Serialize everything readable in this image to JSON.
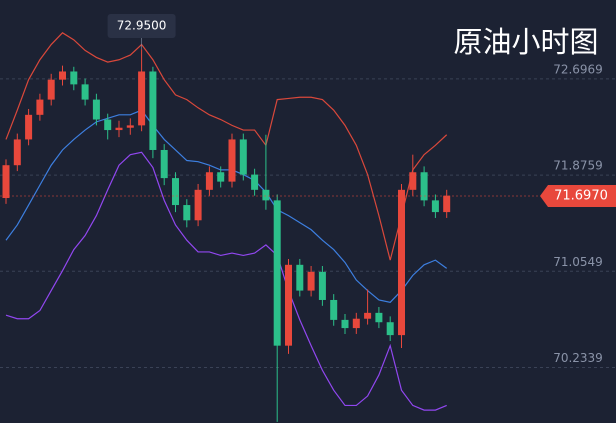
{
  "chart_data": {
    "type": "candlestick",
    "title": "原油小时图",
    "ylim": [
      69.76,
      73.37
    ],
    "yticks": [
      70.2339,
      71.0549,
      71.8759,
      72.6969
    ],
    "grid": true,
    "up_color": "#e8483c",
    "down_color": "#2cc08a",
    "candles": {
      "open": [
        71.68,
        71.96,
        72.18,
        72.39,
        72.52,
        72.69,
        72.76,
        72.65,
        72.52,
        72.35,
        72.26,
        72.28,
        72.3,
        72.76,
        72.09,
        71.85,
        71.62,
        71.49,
        71.75,
        71.9,
        71.82,
        72.18,
        71.88,
        71.75,
        71.66,
        70.42,
        71.11,
        70.89,
        71.05,
        70.81,
        70.64,
        70.57,
        70.65,
        70.7,
        70.62,
        70.51,
        71.75,
        71.9,
        71.66,
        71.56
      ],
      "high": [
        72.01,
        72.23,
        72.44,
        72.57,
        72.74,
        72.81,
        72.8,
        72.7,
        72.57,
        72.4,
        72.34,
        72.36,
        72.95,
        72.8,
        72.14,
        71.9,
        71.67,
        71.8,
        71.95,
        71.95,
        72.23,
        72.23,
        71.93,
        72.22,
        71.71,
        71.16,
        71.16,
        71.1,
        71.1,
        70.86,
        70.69,
        70.7,
        70.9,
        70.75,
        70.67,
        71.8,
        72.05,
        71.95,
        71.71,
        71.75
      ],
      "low": [
        71.63,
        71.91,
        72.13,
        72.34,
        72.47,
        72.64,
        72.6,
        72.47,
        72.3,
        72.18,
        72.2,
        72.22,
        72.25,
        72.02,
        71.79,
        71.56,
        71.43,
        71.44,
        71.7,
        71.77,
        71.77,
        71.83,
        71.7,
        71.58,
        69.77,
        70.35,
        70.84,
        70.84,
        70.76,
        70.59,
        70.52,
        70.52,
        70.6,
        70.57,
        70.46,
        70.4,
        71.7,
        71.61,
        71.51,
        71.51
      ],
      "close": [
        71.96,
        72.18,
        72.39,
        72.52,
        72.69,
        72.76,
        72.65,
        72.52,
        72.35,
        72.26,
        72.28,
        72.3,
        72.76,
        72.09,
        71.85,
        71.62,
        71.49,
        71.75,
        71.9,
        71.82,
        72.18,
        71.88,
        71.75,
        71.66,
        70.42,
        71.11,
        70.89,
        71.05,
        70.81,
        70.64,
        70.57,
        70.65,
        70.7,
        70.62,
        70.51,
        71.75,
        71.9,
        71.66,
        71.56,
        71.7
      ]
    },
    "bands": [
      {
        "color": "#d9483b",
        "values": [
          72.18,
          72.43,
          72.69,
          72.86,
          72.99,
          73.09,
          73.03,
          72.94,
          72.88,
          72.84,
          72.86,
          72.9,
          72.99,
          72.86,
          72.69,
          72.56,
          72.52,
          72.45,
          72.39,
          72.35,
          72.3,
          72.26,
          72.26,
          72.13,
          72.52,
          72.53,
          72.54,
          72.54,
          72.52,
          72.43,
          72.3,
          72.13,
          71.88,
          71.53,
          71.15,
          71.53,
          71.92,
          72.05,
          72.13,
          72.22
        ]
      },
      {
        "color": "#3d7fe0",
        "values": [
          71.32,
          71.45,
          71.62,
          71.79,
          71.96,
          72.09,
          72.18,
          72.26,
          72.33,
          72.36,
          72.39,
          72.39,
          72.43,
          72.3,
          72.18,
          72.09,
          72.0,
          71.99,
          71.96,
          71.92,
          71.92,
          71.88,
          71.83,
          71.73,
          71.58,
          71.53,
          71.47,
          71.41,
          71.32,
          71.24,
          71.13,
          70.98,
          70.89,
          70.81,
          70.79,
          70.89,
          71.02,
          71.11,
          71.15,
          71.08
        ]
      },
      {
        "color": "#9147f0",
        "values": [
          70.68,
          70.65,
          70.65,
          70.72,
          70.89,
          71.06,
          71.24,
          71.36,
          71.53,
          71.75,
          71.96,
          72.05,
          72.07,
          71.94,
          71.66,
          71.45,
          71.32,
          71.22,
          71.22,
          71.19,
          71.21,
          71.19,
          71.21,
          71.28,
          71.19,
          70.89,
          70.64,
          70.42,
          70.21,
          70.04,
          69.91,
          69.91,
          69.99,
          70.17,
          70.42,
          70.04,
          69.91,
          69.87,
          69.87,
          69.91
        ]
      }
    ],
    "high_marker": 72.95,
    "high_marker_label": "72.9500",
    "last_price": 71.697,
    "last_price_label": "71.6970"
  }
}
